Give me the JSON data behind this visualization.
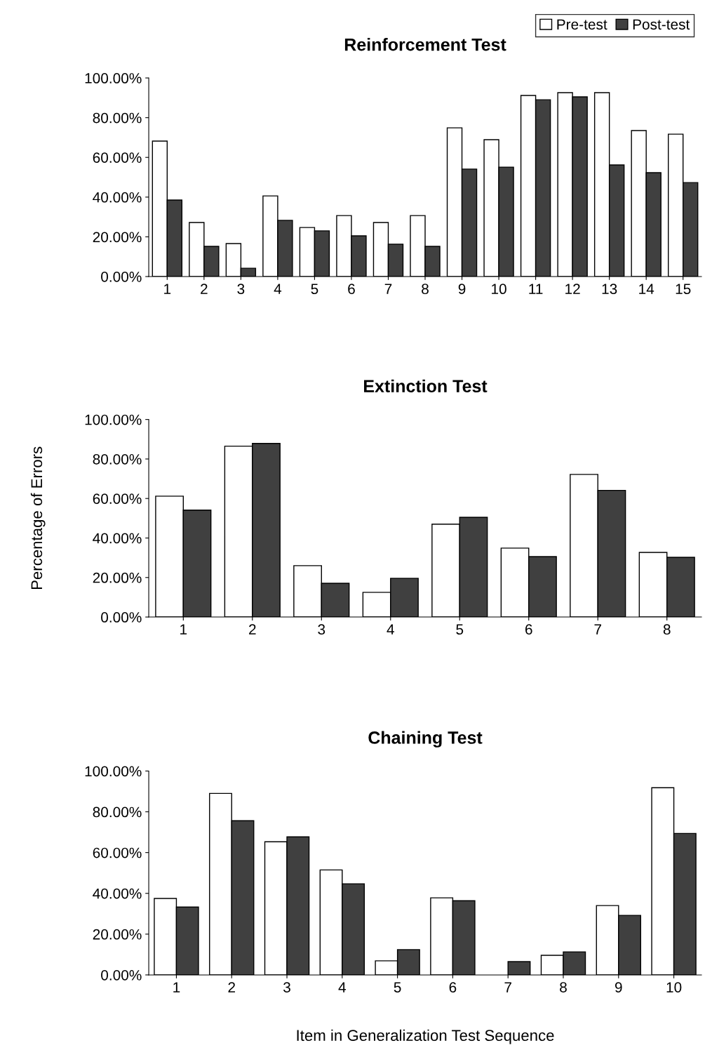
{
  "chart_data": [
    {
      "type": "bar",
      "title": "Reinforcement Test",
      "categories": [
        "1",
        "2",
        "3",
        "4",
        "5",
        "6",
        "7",
        "8",
        "9",
        "10",
        "11",
        "12",
        "13",
        "14",
        "15"
      ],
      "series": [
        {
          "name": "Pre-test",
          "color": "#ffffff",
          "values": [
            68.2,
            27.2,
            16.6,
            40.6,
            24.7,
            30.7,
            27.2,
            30.7,
            74.9,
            68.9,
            91.2,
            92.6,
            92.6,
            73.5,
            71.7
          ]
        },
        {
          "name": "Post-test",
          "color": "#404040",
          "values": [
            38.5,
            15.2,
            4.2,
            28.3,
            23,
            20.5,
            16.3,
            15.2,
            54.1,
            55.1,
            89,
            90.5,
            56.2,
            52.3,
            47.3
          ]
        }
      ],
      "ylim": [
        0,
        100
      ],
      "yticks": [
        {
          "value": 0,
          "label": "0.00%"
        },
        {
          "value": 20,
          "label": "20.00%"
        },
        {
          "value": 40,
          "label": "40.00%"
        },
        {
          "value": 60,
          "label": "60.00%"
        },
        {
          "value": 80,
          "label": "80.00%"
        },
        {
          "value": 100,
          "label": "100.00%"
        }
      ],
      "grid": false,
      "legend": "top right"
    },
    {
      "type": "bar",
      "title": "Extinction Test",
      "ylabel": "Percentage of Errors",
      "categories": [
        "1",
        "2",
        "3",
        "4",
        "5",
        "6",
        "7",
        "8"
      ],
      "series": [
        {
          "color": "#ffffff",
          "values": [
            61.2,
            86.5,
            26,
            12.5,
            47,
            34.9,
            72.2,
            32.7
          ]
        },
        {
          "color": "#404040",
          "values": [
            54.1,
            87.9,
            17.1,
            19.6,
            50.5,
            30.6,
            64.1,
            30.2
          ]
        }
      ],
      "ylim": [
        0,
        100
      ],
      "yticks": [
        {
          "value": 0,
          "label": "0.00%"
        },
        {
          "value": 20,
          "label": "20.00%"
        },
        {
          "value": 40,
          "label": "40.00%"
        },
        {
          "value": 60,
          "label": "60.00%"
        },
        {
          "value": 80,
          "label": "80.00%"
        },
        {
          "value": 100,
          "label": "100.00%"
        }
      ],
      "grid": false
    },
    {
      "type": "bar",
      "title": "Chaining Test",
      "xlabel": "Item in Generalization Test Sequence",
      "categories": [
        "1",
        "2",
        "3",
        "4",
        "5",
        "6",
        "7",
        "8",
        "9",
        "10"
      ],
      "series": [
        {
          "color": "#ffffff",
          "values": [
            37.5,
            89,
            65.3,
            51.5,
            6.9,
            37.8,
            0,
            9.6,
            34,
            91.8
          ]
        },
        {
          "color": "#404040",
          "values": [
            33.3,
            75.6,
            67.7,
            44.7,
            12.4,
            36.4,
            6.5,
            11.3,
            29.2,
            69.4
          ]
        }
      ],
      "ylim": [
        0,
        100
      ],
      "yticks": [
        {
          "value": 0,
          "label": "0.00%"
        },
        {
          "value": 20,
          "label": "20.00%"
        },
        {
          "value": 40,
          "label": "40.00%"
        },
        {
          "value": 60,
          "label": "60.00%"
        },
        {
          "value": 80,
          "label": "80.00%"
        },
        {
          "value": 100,
          "label": "100.00%"
        }
      ],
      "grid": false
    }
  ]
}
